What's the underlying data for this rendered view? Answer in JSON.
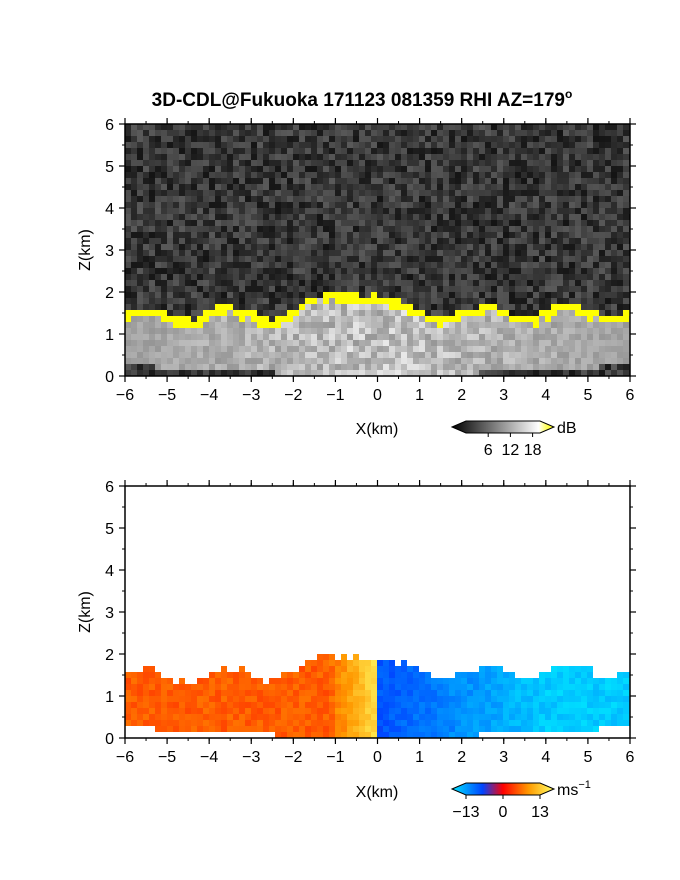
{
  "chart_data": [
    {
      "type": "heatmap",
      "title": "3D-CDL@Fukuoka 171123 081359 RHI AZ=179",
      "title_suffix": "o",
      "panel": "intensity",
      "xlabel": "X(km)",
      "ylabel": "Z(km)",
      "xlim": [
        -6,
        6
      ],
      "ylim": [
        0,
        6
      ],
      "xticks": [
        "-6",
        "-5",
        "-4",
        "-3",
        "-2",
        "-1",
        "0",
        "1",
        "2",
        "3",
        "4",
        "5",
        "6"
      ],
      "yticks": [
        "0",
        "1",
        "2",
        "3",
        "4",
        "5",
        "6"
      ],
      "colorbar": {
        "label": "dB",
        "ticks": [
          "6",
          "12",
          "18"
        ],
        "range": [
          0,
          20
        ],
        "colors": [
          "#000000",
          "#ffffff",
          "#ffff00"
        ]
      },
      "features": {
        "layer_top_left_km": 1.5,
        "layer_top_center_km": 2.1,
        "layer_top_right_km": 1.6,
        "high_intensity_color": "#ffff00",
        "background": "noise"
      }
    },
    {
      "type": "heatmap",
      "panel": "velocity",
      "xlabel": "X(km)",
      "ylabel": "Z(km)",
      "xlim": [
        -6,
        6
      ],
      "ylim": [
        0,
        6
      ],
      "xticks": [
        "-6",
        "-5",
        "-4",
        "-3",
        "-2",
        "-1",
        "0",
        "1",
        "2",
        "3",
        "4",
        "5",
        "6"
      ],
      "yticks": [
        "0",
        "1",
        "2",
        "3",
        "4",
        "5",
        "6"
      ],
      "colorbar": {
        "label": "ms",
        "label_exponent": "−1",
        "ticks": [
          "−13",
          "0",
          "13"
        ],
        "range": [
          -13,
          13
        ],
        "colors": [
          "#00e5ff",
          "#0044ff",
          "#ff0000",
          "#ff9900",
          "#ffff66"
        ]
      },
      "features": {
        "left_side_velocity": "positive",
        "right_side_velocity": "negative",
        "layer_top_left_km": 1.5,
        "layer_top_center_km": 2.1,
        "layer_top_right_km": 1.6
      }
    }
  ]
}
